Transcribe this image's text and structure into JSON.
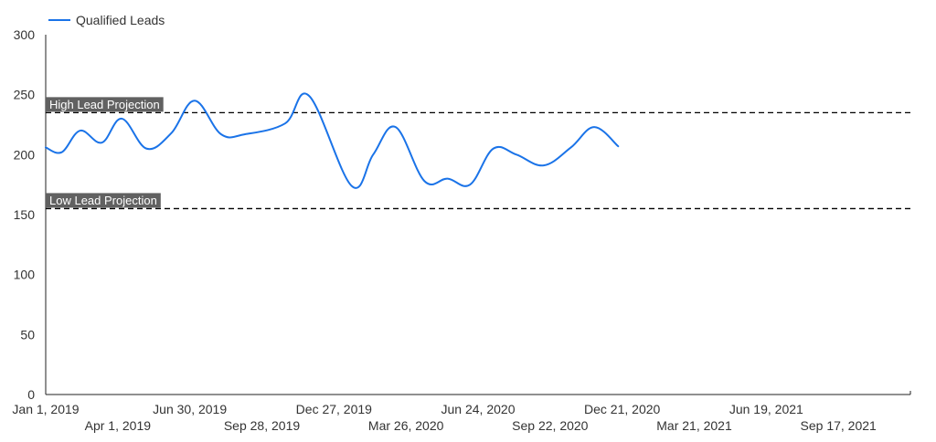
{
  "chart_data": {
    "type": "line",
    "legend": {
      "position": "top-left"
    },
    "series": [
      {
        "name": "Qualified Leads",
        "color": "#1a73e8",
        "points": [
          [
            "2019-01-01",
            206
          ],
          [
            "2019-01-21",
            202
          ],
          [
            "2019-02-13",
            220
          ],
          [
            "2019-03-12",
            210
          ],
          [
            "2019-04-06",
            230
          ],
          [
            "2019-05-07",
            205
          ],
          [
            "2019-06-07",
            218
          ],
          [
            "2019-07-06",
            245
          ],
          [
            "2019-08-08",
            217
          ],
          [
            "2019-09-07",
            217
          ],
          [
            "2019-10-27",
            226
          ],
          [
            "2019-11-26",
            249
          ],
          [
            "2020-01-18",
            174
          ],
          [
            "2020-02-14",
            200
          ],
          [
            "2020-03-13",
            223
          ],
          [
            "2020-04-18",
            178
          ],
          [
            "2020-05-17",
            180
          ],
          [
            "2020-06-14",
            175
          ],
          [
            "2020-07-13",
            205
          ],
          [
            "2020-08-11",
            200
          ],
          [
            "2020-09-14",
            191
          ],
          [
            "2020-10-18",
            206
          ],
          [
            "2020-11-16",
            223
          ],
          [
            "2020-12-16",
            207
          ]
        ]
      }
    ],
    "reference_lines": [
      {
        "label": "High Lead Projection",
        "value": 235,
        "color": "#000000",
        "label_bg": "#616161"
      },
      {
        "label": "Low Lead Projection",
        "value": 155,
        "color": "#000000",
        "label_bg": "#616161"
      }
    ],
    "y_axis": {
      "min": 0,
      "max": 300,
      "ticks": [
        "0",
        "50",
        "100",
        "150",
        "200",
        "250",
        "300"
      ]
    },
    "x_axis": {
      "min": "2019-01-01",
      "max": "2021-12-16",
      "ticks": [
        {
          "date": "2019-01-01",
          "label": "Jan 1, 2019"
        },
        {
          "date": "2019-04-01",
          "label": "Apr 1, 2019"
        },
        {
          "date": "2019-06-30",
          "label": "Jun 30, 2019"
        },
        {
          "date": "2019-09-28",
          "label": "Sep 28, 2019"
        },
        {
          "date": "2019-12-27",
          "label": "Dec 27, 2019"
        },
        {
          "date": "2020-03-26",
          "label": "Mar 26, 2020"
        },
        {
          "date": "2020-06-24",
          "label": "Jun 24, 2020"
        },
        {
          "date": "2020-09-22",
          "label": "Sep 22, 2020"
        },
        {
          "date": "2020-12-21",
          "label": "Dec 21, 2020"
        },
        {
          "date": "2021-03-21",
          "label": "Mar 21, 2021"
        },
        {
          "date": "2021-06-19",
          "label": "Jun 19, 2021"
        },
        {
          "date": "2021-09-17",
          "label": "Sep 17, 2021"
        }
      ]
    },
    "grid": false
  }
}
